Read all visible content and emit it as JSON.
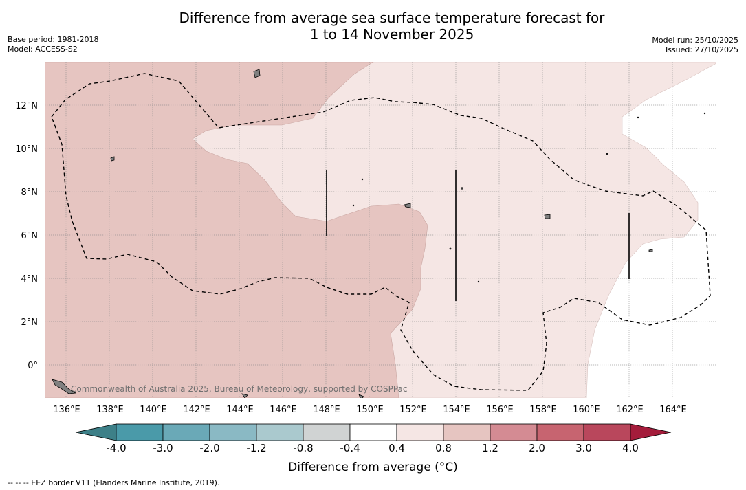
{
  "title_line1": "Difference from average sea surface temperature forecast for",
  "title_line2": "1 to 14 November 2025",
  "base_period": "Base period: 1981-2018",
  "model": "Model: ACCESS-S2",
  "model_run": "Model run: 25/10/2025",
  "issued": "Issued: 27/10/2025",
  "lat_labels": [
    "12°N",
    "10°N",
    "8°N",
    "6°N",
    "4°N",
    "2°N",
    "0°"
  ],
  "lon_labels": [
    "136°E",
    "138°E",
    "140°E",
    "142°E",
    "144°E",
    "146°E",
    "148°E",
    "150°E",
    "152°E",
    "154°E",
    "156°E",
    "158°E",
    "160°E",
    "162°E",
    "164°E"
  ],
  "colorbar": {
    "labels": [
      "-4.0",
      "-3.0",
      "-2.0",
      "-1.2",
      "-0.8",
      "-0.4",
      "0.4",
      "0.8",
      "1.2",
      "2.0",
      "3.0",
      "4.0"
    ],
    "colors": [
      "#4a9aa9",
      "#6aa9b7",
      "#8ab9c4",
      "#aac9ce",
      "#d0d3d3",
      "#ffffff",
      "#f5e6e4",
      "#e6c5c1",
      "#d48b93",
      "#c76470",
      "#b9475c"
    ],
    "under_color": "#3d8088",
    "over_color": "#a41c3b",
    "title": "Difference from average (°C)"
  },
  "legend_note": "--  --  -- EEZ border V11 (Flanders Marine Institute, 2019).",
  "copyright": "Commonwealth of Australia 2025, Bureau of Meteorology, supported by COSPPac",
  "fill_colors": {
    "zone_04_08": "#f5e6e4",
    "zone_08_12": "#e6c5c1"
  }
}
